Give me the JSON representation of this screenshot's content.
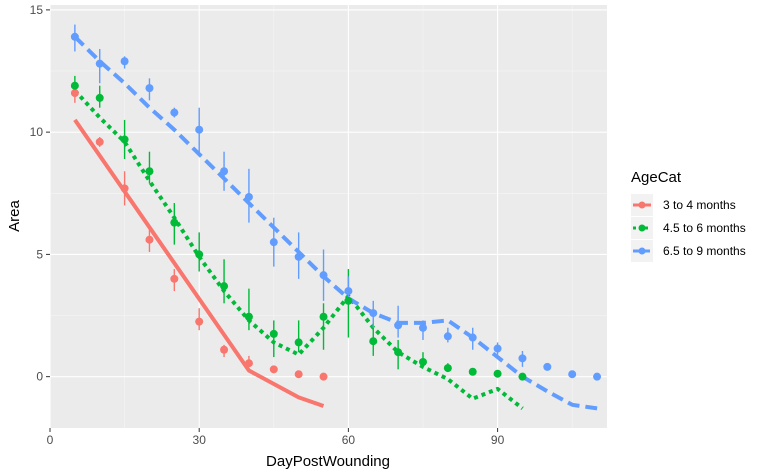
{
  "chart_data": {
    "type": "line",
    "title": "",
    "xlabel": "DayPostWounding",
    "ylabel": "Area",
    "xlim": [
      0,
      112
    ],
    "ylim": [
      -2.1,
      15.2
    ],
    "x_ticks": [
      0,
      30,
      60,
      90
    ],
    "y_ticks": [
      0,
      5,
      10,
      15
    ],
    "x_tick_labels": [
      "0",
      "30",
      "60",
      "90"
    ],
    "y_tick_labels": [
      "0",
      "5",
      "10",
      "15"
    ],
    "grid": true,
    "legend": {
      "title": "AgeCat",
      "placement": "right"
    },
    "series": [
      {
        "name": "3 to 4 months",
        "color": "#F8766D",
        "dash": "solid",
        "points": [
          {
            "x": 5,
            "y": 11.6,
            "lo": 11.2,
            "hi": 12.0
          },
          {
            "x": 10,
            "y": 9.6,
            "lo": 9.4,
            "hi": 9.8
          },
          {
            "x": 15,
            "y": 7.7,
            "lo": 7.0,
            "hi": 8.4
          },
          {
            "x": 20,
            "y": 5.6,
            "lo": 5.1,
            "hi": 6.1
          },
          {
            "x": 25,
            "y": 4.0,
            "lo": 3.5,
            "hi": 4.4
          },
          {
            "x": 30,
            "y": 2.25,
            "lo": 1.9,
            "hi": 2.8
          },
          {
            "x": 35,
            "y": 1.1,
            "lo": 0.8,
            "hi": 1.3
          },
          {
            "x": 40,
            "y": 0.55,
            "lo": 0.4,
            "hi": 0.85
          },
          {
            "x": 45,
            "y": 0.3,
            "lo": 0.25,
            "hi": 0.35
          },
          {
            "x": 50,
            "y": 0.1,
            "lo": 0.05,
            "hi": 0.15
          },
          {
            "x": 55,
            "y": 0.0,
            "lo": -0.05,
            "hi": 0.05
          }
        ],
        "fit": [
          [
            5,
            10.5
          ],
          [
            40,
            0.25
          ],
          [
            50,
            -0.85
          ],
          [
            55,
            -1.2
          ]
        ]
      },
      {
        "name": "4.5 to 6 months",
        "color": "#00BA38",
        "dash": "dotted",
        "points": [
          {
            "x": 5,
            "y": 11.9,
            "lo": 11.6,
            "hi": 12.3
          },
          {
            "x": 10,
            "y": 11.4,
            "lo": 11.0,
            "hi": 11.9
          },
          {
            "x": 15,
            "y": 9.7,
            "lo": 8.9,
            "hi": 10.5
          },
          {
            "x": 20,
            "y": 8.4,
            "lo": 7.9,
            "hi": 9.2
          },
          {
            "x": 25,
            "y": 6.3,
            "lo": 5.4,
            "hi": 7.1
          },
          {
            "x": 30,
            "y": 5.0,
            "lo": 4.3,
            "hi": 5.9
          },
          {
            "x": 35,
            "y": 3.7,
            "lo": 3.0,
            "hi": 4.8
          },
          {
            "x": 40,
            "y": 2.45,
            "lo": 1.9,
            "hi": 3.6
          },
          {
            "x": 45,
            "y": 1.75,
            "lo": 0.8,
            "hi": 2.3
          },
          {
            "x": 50,
            "y": 1.4,
            "lo": 1.0,
            "hi": 2.3
          },
          {
            "x": 55,
            "y": 2.45,
            "lo": 1.1,
            "hi": 3.0
          },
          {
            "x": 60,
            "y": 3.1,
            "lo": 1.6,
            "hi": 4.4
          },
          {
            "x": 65,
            "y": 1.45,
            "lo": 0.85,
            "hi": 2.2
          },
          {
            "x": 70,
            "y": 1.0,
            "lo": 0.3,
            "hi": 1.5
          },
          {
            "x": 75,
            "y": 0.6,
            "lo": 0.45,
            "hi": 1.0
          },
          {
            "x": 80,
            "y": 0.35,
            "lo": 0.2,
            "hi": 0.55
          },
          {
            "x": 85,
            "y": 0.2,
            "lo": 0.1,
            "hi": 0.3
          },
          {
            "x": 90,
            "y": 0.12,
            "lo": 0.05,
            "hi": 0.2
          },
          {
            "x": 95,
            "y": 0.0,
            "lo": -0.05,
            "hi": 0.05
          }
        ],
        "fit": [
          [
            5,
            11.7
          ],
          [
            10,
            10.6
          ],
          [
            15,
            9.6
          ],
          [
            20,
            8.0
          ],
          [
            25,
            6.5
          ],
          [
            30,
            4.9
          ],
          [
            35,
            3.5
          ],
          [
            40,
            2.3
          ],
          [
            45,
            1.4
          ],
          [
            50,
            0.9
          ],
          [
            55,
            2.0
          ],
          [
            60,
            3.3
          ],
          [
            65,
            2.0
          ],
          [
            70,
            1.0
          ],
          [
            75,
            0.4
          ],
          [
            80,
            -0.1
          ],
          [
            85,
            -0.9
          ],
          [
            90,
            -0.5
          ],
          [
            95,
            -1.3
          ]
        ]
      },
      {
        "name": "6.5 to 9 months",
        "color": "#619CFF",
        "dash": "dashed",
        "points": [
          {
            "x": 5,
            "y": 13.9,
            "lo": 13.3,
            "hi": 14.4
          },
          {
            "x": 10,
            "y": 12.8,
            "lo": 12.0,
            "hi": 13.4
          },
          {
            "x": 15,
            "y": 12.9,
            "lo": 12.6,
            "hi": 13.1
          },
          {
            "x": 20,
            "y": 11.8,
            "lo": 11.3,
            "hi": 12.2
          },
          {
            "x": 25,
            "y": 10.8,
            "lo": 10.6,
            "hi": 11.0
          },
          {
            "x": 30,
            "y": 10.1,
            "lo": 9.1,
            "hi": 11.0
          },
          {
            "x": 35,
            "y": 8.4,
            "lo": 7.6,
            "hi": 9.2
          },
          {
            "x": 40,
            "y": 7.35,
            "lo": 6.3,
            "hi": 8.5
          },
          {
            "x": 45,
            "y": 5.5,
            "lo": 4.5,
            "hi": 6.5
          },
          {
            "x": 50,
            "y": 4.9,
            "lo": 4.0,
            "hi": 5.9
          },
          {
            "x": 55,
            "y": 4.15,
            "lo": 3.1,
            "hi": 5.2
          },
          {
            "x": 60,
            "y": 3.5,
            "lo": 3.0,
            "hi": 4.1
          },
          {
            "x": 65,
            "y": 2.6,
            "lo": 2.0,
            "hi": 3.1
          },
          {
            "x": 70,
            "y": 2.1,
            "lo": 1.6,
            "hi": 2.9
          },
          {
            "x": 75,
            "y": 2.0,
            "lo": 1.5,
            "hi": 2.3
          },
          {
            "x": 80,
            "y": 1.65,
            "lo": 1.4,
            "hi": 2.0
          },
          {
            "x": 85,
            "y": 1.6,
            "lo": 1.1,
            "hi": 2.0
          },
          {
            "x": 90,
            "y": 1.15,
            "lo": 0.9,
            "hi": 1.4
          },
          {
            "x": 95,
            "y": 0.75,
            "lo": 0.4,
            "hi": 1.05
          },
          {
            "x": 100,
            "y": 0.4,
            "lo": 0.3,
            "hi": 0.55
          },
          {
            "x": 105,
            "y": 0.1,
            "lo": 0.05,
            "hi": 0.15
          },
          {
            "x": 110,
            "y": 0.0,
            "lo": -0.05,
            "hi": 0.05
          }
        ],
        "fit": [
          [
            5,
            13.9
          ],
          [
            10,
            12.9
          ],
          [
            15,
            12.0
          ],
          [
            20,
            11.0
          ],
          [
            25,
            10.1
          ],
          [
            30,
            9.1
          ],
          [
            35,
            8.1
          ],
          [
            40,
            7.1
          ],
          [
            45,
            6.1
          ],
          [
            50,
            5.1
          ],
          [
            55,
            4.1
          ],
          [
            60,
            3.2
          ],
          [
            65,
            2.6
          ],
          [
            70,
            2.2
          ],
          [
            75,
            2.2
          ],
          [
            80,
            2.3
          ],
          [
            85,
            1.6
          ],
          [
            90,
            0.8
          ],
          [
            95,
            0.0
          ],
          [
            100,
            -0.6
          ],
          [
            105,
            -1.15
          ],
          [
            110,
            -1.3
          ]
        ]
      }
    ]
  }
}
